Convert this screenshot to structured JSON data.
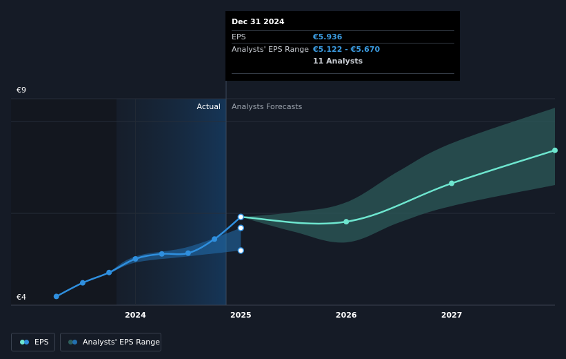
{
  "chart_data": {
    "type": "line",
    "y_axis": {
      "min": 4,
      "max": 9,
      "top_label": "€9",
      "bottom_label": "€4"
    },
    "x_axis": {
      "ticks": [
        {
          "label": "2024",
          "value": 2024.0
        },
        {
          "label": "2025",
          "value": 2025.0
        },
        {
          "label": "2026",
          "value": 2026.0
        },
        {
          "label": "2027",
          "value": 2027.0
        }
      ],
      "range": [
        2022.82,
        2027.98
      ]
    },
    "region_labels": {
      "actual": "Actual",
      "forecast": "Analysts Forecasts"
    },
    "eps_actual": [
      {
        "x": 2023.25,
        "y": 4.01
      },
      {
        "x": 2023.5,
        "y": 4.34
      },
      {
        "x": 2023.75,
        "y": 4.59
      },
      {
        "x": 2024.0,
        "y": 4.92
      },
      {
        "x": 2024.25,
        "y": 5.04
      },
      {
        "x": 2024.5,
        "y": 5.06
      },
      {
        "x": 2024.75,
        "y": 5.4
      },
      {
        "x": 2025.0,
        "y": 5.936
      }
    ],
    "eps_forecast": [
      {
        "x": 2025.0,
        "y": 5.936
      },
      {
        "x": 2026.0,
        "y": 5.82
      },
      {
        "x": 2027.0,
        "y": 6.75
      },
      {
        "x": 2027.98,
        "y": 7.55
      }
    ],
    "range_actual": [
      {
        "x": 2023.75,
        "low": 4.55,
        "high": 4.59
      },
      {
        "x": 2024.0,
        "low": 4.83,
        "high": 4.98
      },
      {
        "x": 2024.5,
        "low": 4.98,
        "high": 5.21
      },
      {
        "x": 2025.0,
        "low": 5.122,
        "high": 5.67
      }
    ],
    "range_forecast": [
      {
        "x": 2025.0,
        "low": 5.936,
        "high": 5.936
      },
      {
        "x": 2025.5,
        "low": 5.58,
        "high": 6.05
      },
      {
        "x": 2026.0,
        "low": 5.32,
        "high": 6.29
      },
      {
        "x": 2026.5,
        "low": 5.8,
        "high": 7.05
      },
      {
        "x": 2027.0,
        "low": 6.2,
        "high": 7.72
      },
      {
        "x": 2027.98,
        "low": 6.71,
        "high": 8.58
      }
    ],
    "range_end_markers": [
      5.122,
      5.67
    ],
    "series_colors": {
      "eps_actual": "#2f8fde",
      "eps_forecast": "#6ee6cf",
      "range_actual": "#2370b0",
      "range_forecast": "#2e5e5c"
    }
  },
  "tooltip": {
    "date": "Dec 31 2024",
    "eps_label": "EPS",
    "eps_value": "€5.936",
    "range_label": "Analysts' EPS Range",
    "range_value": "€5.122 - €5.670",
    "analysts": "11 Analysts"
  },
  "legend": {
    "eps_label": "EPS",
    "range_label": "Analysts' EPS Range"
  }
}
